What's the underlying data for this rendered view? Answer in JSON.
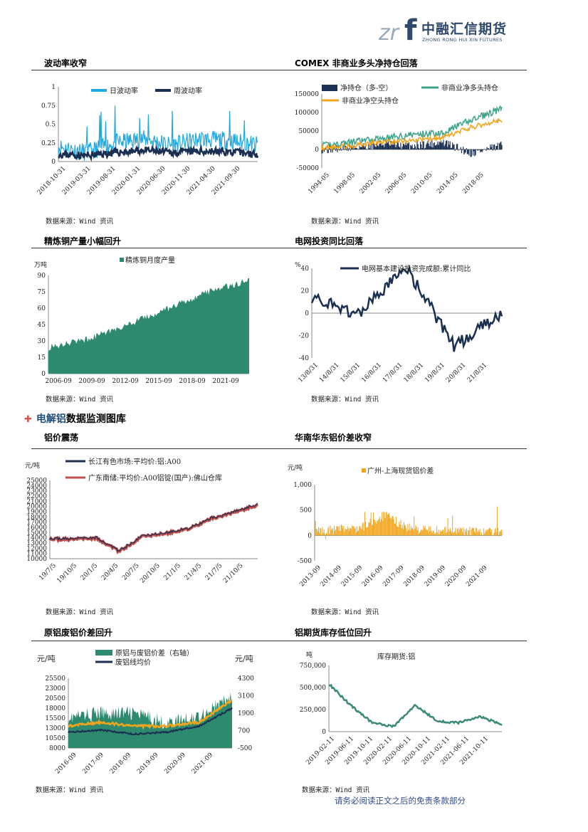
{
  "header": {
    "logo_name": "中融汇信期货",
    "logo_en": "ZHONG RONG HUI XIN FUTURES",
    "mark_letters": "zrf"
  },
  "section": {
    "title_accent": "电解铝",
    "title_rest": "数据监测图库"
  },
  "footer": "请务必阅读正文之后的免责条款部分",
  "panels": [
    {
      "title": "波动率收窄",
      "source": "数据来源：Wind 资讯"
    },
    {
      "title": "COMEX 非商业多头净持仓回落",
      "source": "数据来源：Wind 资讯"
    },
    {
      "title": "精炼铜产量小幅回升",
      "source": "数据来源：Wind 资讯"
    },
    {
      "title": "电网投资同比回落",
      "source": "数据来源：Wind 资讯"
    },
    {
      "title": "铝价震荡",
      "source": "数据来源：Wind 资讯"
    },
    {
      "title": "华南华东铝价差收窄",
      "source": "数据来源：Wind 资讯"
    },
    {
      "title": "原铝废铝价差回升",
      "source": "数据来源：Wind 资讯"
    },
    {
      "title": "铝期货库存低位回升",
      "source": "数据来源：Wind 资讯"
    }
  ],
  "chart_data": [
    {
      "type": "line",
      "x": [
        "2018-10-31",
        "2019-03-31",
        "2019-08-31",
        "2020-01-31",
        "2020-06-30",
        "2020-11-30",
        "2021-04-30",
        "2021-09-30"
      ],
      "yticks": [
        "0",
        "0.25",
        "0.5",
        "0.75",
        "1"
      ],
      "ylim": [
        0,
        1
      ],
      "series": [
        {
          "name": "日波动率",
          "color": "#1fa9e1",
          "values": [
            0.2,
            0.12,
            0.25,
            0.3,
            0.22,
            0.3,
            0.28,
            0.22
          ]
        },
        {
          "name": "周波动率",
          "color": "#1b2f52",
          "values": [
            0.1,
            0.08,
            0.12,
            0.15,
            0.12,
            0.14,
            0.13,
            0.1
          ]
        }
      ]
    },
    {
      "type": "line",
      "x": [
        "1994-05",
        "1998-05",
        "2002-05",
        "2006-05",
        "2010-05",
        "2014-05",
        "2018-05"
      ],
      "yticks": [
        "-50000",
        "0",
        "50000",
        "100000",
        "150000"
      ],
      "ylim": [
        -50000,
        150000
      ],
      "series": [
        {
          "name": "净持仓（多-空）",
          "color": "#1b2f52",
          "values": [
            0,
            5000,
            15000,
            10000,
            20000,
            -10000,
            10000
          ]
        },
        {
          "name": "非商业净多头持仓",
          "color": "#3aa38a",
          "values": [
            10000,
            20000,
            30000,
            40000,
            45000,
            80000,
            110000
          ]
        },
        {
          "name": "非商业净空头持仓",
          "color": "#f2a51c",
          "values": [
            5000,
            10000,
            20000,
            25000,
            30000,
            60000,
            80000
          ]
        }
      ]
    },
    {
      "type": "area",
      "x": [
        "2006-09",
        "2009-09",
        "2012-09",
        "2015-09",
        "2018-09",
        "2021-09"
      ],
      "yticks": [
        "0",
        "15",
        "30",
        "45",
        "60",
        "75",
        "90"
      ],
      "ylim": [
        0,
        90
      ],
      "ylabel": "万吨",
      "series": [
        {
          "name": "精炼铜月度产量",
          "color": "#2e8a6e",
          "values": [
            24,
            32,
            45,
            60,
            75,
            86
          ]
        }
      ]
    },
    {
      "type": "line",
      "x": [
        "13/8/31",
        "14/8/31",
        "15/8/31",
        "16/8/31",
        "17/8/31",
        "18/8/31",
        "19/8/31",
        "20/8/31",
        "21/8/31"
      ],
      "yticks": [
        "-40",
        "-20",
        "0",
        "20",
        "40"
      ],
      "ylim": [
        -40,
        60
      ],
      "ylabel": "%",
      "series": [
        {
          "name": "电网基本建设投资完成额:累计同比",
          "color": "#1b2f52",
          "values": [
            15,
            5,
            0,
            20,
            40,
            5,
            -30,
            -15,
            0
          ]
        }
      ]
    },
    {
      "type": "line",
      "x": [
        "19/7/5",
        "19/10/5",
        "20/1/5",
        "20/4/5",
        "20/7/5",
        "20/10/5",
        "21/1/5",
        "21/4/5",
        "21/7/5",
        "21/10/5"
      ],
      "yticks": [
        "10000",
        "11000",
        "12000",
        "13000",
        "14000",
        "15000",
        "16000",
        "17000",
        "18000",
        "19000",
        "20000",
        "21000",
        "22000",
        "23000",
        "24000",
        "25000"
      ],
      "ylim": [
        10000,
        25000
      ],
      "ylabel": "元/吨",
      "series": [
        {
          "name": "长江有色市场:平均价:铝:A00",
          "color": "#1b2f52",
          "values": [
            13900,
            13800,
            14100,
            11500,
            14300,
            14900,
            15800,
            17800,
            19000,
            20500
          ]
        },
        {
          "name": "广东南储:平均价:A00铝锭(国产):佛山仓库",
          "color": "#c0504d",
          "values": [
            13800,
            13700,
            14000,
            11400,
            14200,
            14800,
            15700,
            17700,
            18900,
            20300
          ]
        }
      ]
    },
    {
      "type": "bar",
      "x": [
        "2013-09",
        "2014-09",
        "2015-09",
        "2016-09",
        "2017-09",
        "2018-09",
        "2019-09",
        "2020-09",
        "2021-09"
      ],
      "yticks": [
        "-500",
        "0",
        "500",
        "1,000"
      ],
      "ylim": [
        -500,
        1000
      ],
      "ylabel": "元/吨",
      "series": [
        {
          "name": "广州-上海现货铝价差",
          "color": "#f2a51c",
          "values": [
            80,
            120,
            150,
            400,
            150,
            100,
            100,
            80,
            60
          ]
        }
      ]
    },
    {
      "type": "area",
      "x": [
        "2016-09",
        "2017-09",
        "2018-09",
        "2019-09",
        "2020-09",
        "2021-09"
      ],
      "yticks_left": [
        "8000",
        "10500",
        "13000",
        "15500",
        "18000",
        "20500",
        "23000",
        "25500"
      ],
      "yticks_right": [
        "-500",
        "700",
        "1900",
        "3100",
        "4300"
      ],
      "ylabel_left": "元/吨",
      "ylabel_right": "元/吨",
      "series": [
        {
          "name": "原铝与废铝价差（右轴）",
          "color": "#2e8a6e",
          "values": [
            1600,
            1900,
            1900,
            1200,
            1700,
            3000
          ]
        },
        {
          "name": "废铝线均价",
          "color": "#1b2f52",
          "values": [
            12000,
            12500,
            11500,
            12000,
            13500,
            18000
          ]
        },
        {
          "name": "",
          "color": "#f2a51c",
          "values": [
            13500,
            14500,
            13500,
            13500,
            14500,
            20000
          ]
        }
      ]
    },
    {
      "type": "line",
      "x": [
        "2019-02-11",
        "2019-06-11",
        "2019-10-11",
        "2020-02-11",
        "2020-06-11",
        "2020-10-11",
        "2021-02-11",
        "2021-06-11",
        "2021-10-11"
      ],
      "yticks": [
        "0",
        "250,000",
        "500,000",
        "750,000"
      ],
      "ylim": [
        0,
        750000
      ],
      "ylabel": "吨",
      "series": [
        {
          "name": "库存期货:铝",
          "color": "#3a8a76",
          "values": [
            540000,
            300000,
            100000,
            60000,
            300000,
            120000,
            100000,
            170000,
            80000
          ]
        }
      ]
    }
  ]
}
